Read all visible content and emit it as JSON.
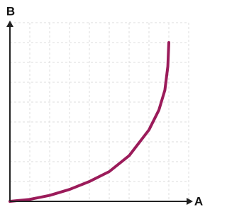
{
  "chart_data": {
    "type": "line",
    "x_label": "A",
    "y_label": "B",
    "x": [
      0,
      1,
      2,
      3,
      4,
      5,
      6,
      7,
      7.5,
      7.8,
      7.95,
      8
    ],
    "series": [
      {
        "color": "#9b1b5a",
        "values": [
          0,
          0.1,
          0.3,
          0.6,
          1,
          1.5,
          2.3,
          3.6,
          4.6,
          5.6,
          6.8,
          8
        ]
      }
    ],
    "xlim": [
      0,
      9
    ],
    "ylim": [
      0,
      9
    ],
    "xticks": [
      1,
      2,
      3,
      4,
      5,
      6,
      7,
      8,
      9
    ],
    "yticks": [
      1,
      2,
      3,
      4,
      5,
      6,
      7,
      8,
      9
    ],
    "grid": true
  }
}
